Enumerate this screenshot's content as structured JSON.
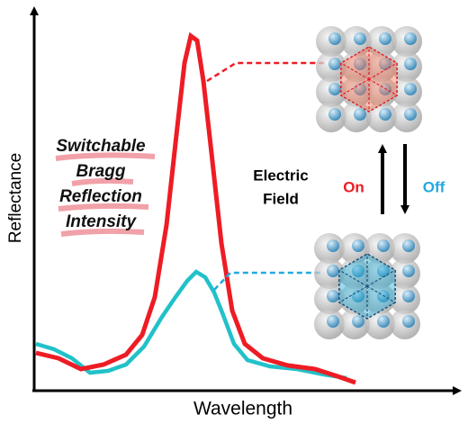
{
  "axes": {
    "y_label": "Reflectance",
    "x_label": "Wavelength"
  },
  "annotation": {
    "lines": [
      "Switchable",
      "Bragg",
      "Reflection",
      "Intensity"
    ]
  },
  "switch": {
    "label_lines": [
      "Electric",
      "Field"
    ],
    "on": "On",
    "off": "Off"
  }
}
